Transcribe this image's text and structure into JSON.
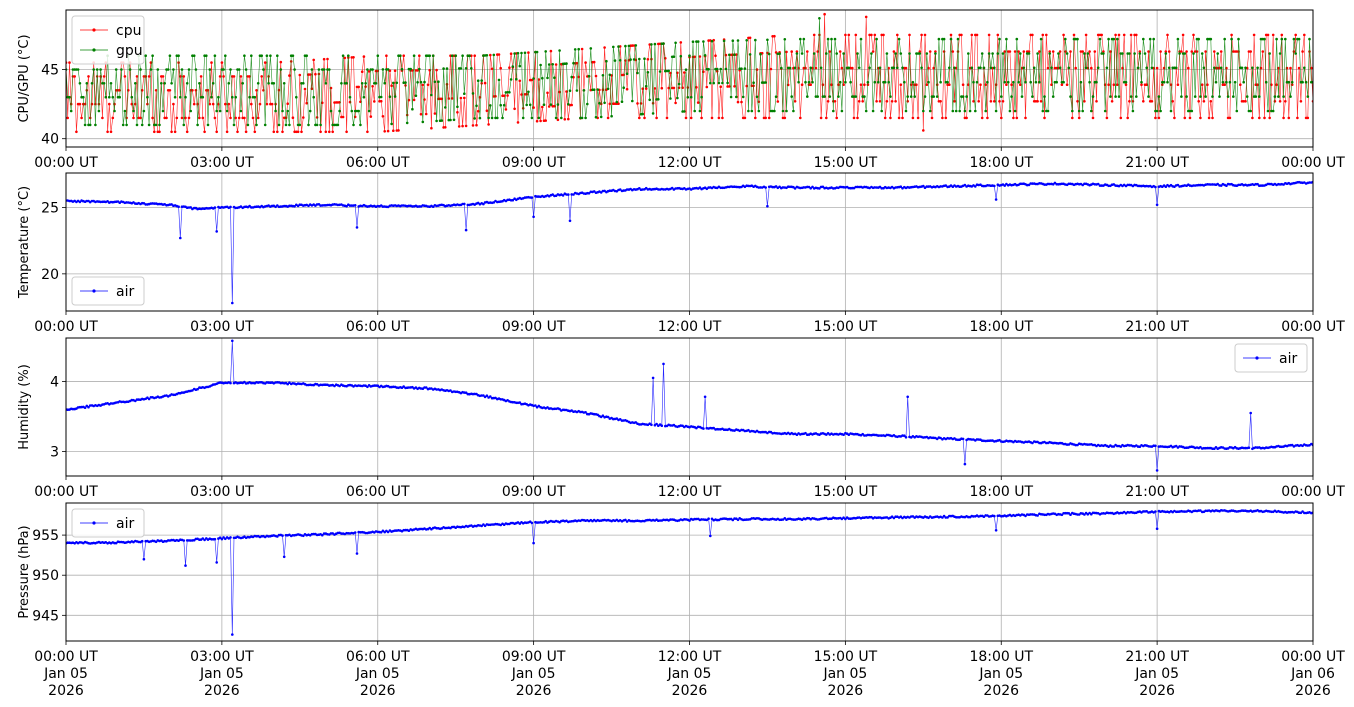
{
  "chart_data": [
    {
      "type": "line",
      "ylabel": "CPU/GPU (°C)",
      "ylim": [
        39.4,
        49.3
      ],
      "yticks": [
        40,
        45
      ],
      "grid": true,
      "legend": {
        "placement": "top-left",
        "entries": [
          "cpu",
          "gpu"
        ]
      },
      "x_ticks": [
        "00:00 UT",
        "03:00 UT",
        "06:00 UT",
        "09:00 UT",
        "12:00 UT",
        "15:00 UT",
        "18:00 UT",
        "21:00 UT",
        "00:00 UT"
      ],
      "x_range_hours": [
        0,
        24
      ],
      "series": [
        {
          "name": "cpu",
          "color": "#ff0000",
          "marker": "dot",
          "x_hours": [
            0,
            2,
            4,
            6,
            8,
            10,
            12,
            14,
            16,
            18,
            20,
            22,
            24
          ],
          "low": [
            40.5,
            40.5,
            40.5,
            40.5,
            41,
            41.5,
            41.5,
            41.5,
            41.5,
            41.5,
            41.5,
            41.5,
            41.5
          ],
          "high": [
            45.5,
            45.5,
            45.5,
            46,
            46,
            46.5,
            47,
            47.5,
            47.5,
            47.5,
            47.5,
            47.5,
            47.5
          ],
          "spikes": [
            {
              "x": 14.6,
              "y": 49.0
            },
            {
              "x": 15.4,
              "y": 48.8
            },
            {
              "x": 16.5,
              "y": 40.6
            }
          ]
        },
        {
          "name": "gpu",
          "color": "#008000",
          "marker": "dot",
          "x_hours": [
            0,
            2,
            4,
            6,
            8,
            10,
            12,
            14,
            16,
            18,
            20,
            22,
            24
          ],
          "low": [
            41,
            41,
            41,
            41,
            41.5,
            41.5,
            42,
            42,
            42,
            42,
            42,
            42,
            42
          ],
          "high": [
            46,
            46,
            46,
            46,
            46,
            46.5,
            47,
            47.2,
            47.2,
            47.2,
            47.2,
            47.2,
            47.2
          ],
          "spikes": [
            {
              "x": 14.5,
              "y": 48.7
            }
          ]
        }
      ]
    },
    {
      "type": "line",
      "ylabel": "Temperature (°C)",
      "ylim": [
        17.2,
        27.6
      ],
      "yticks": [
        20,
        25
      ],
      "grid": true,
      "legend": {
        "placement": "bottom-left",
        "entries": [
          "air"
        ]
      },
      "x_ticks": [
        "00:00 UT",
        "03:00 UT",
        "06:00 UT",
        "09:00 UT",
        "12:00 UT",
        "15:00 UT",
        "18:00 UT",
        "21:00 UT",
        "00:00 UT"
      ],
      "x_range_hours": [
        0,
        24
      ],
      "series": [
        {
          "name": "air",
          "color": "#0000ff",
          "marker": "dot",
          "x_hours": [
            0,
            1,
            2,
            2.5,
            3,
            4,
            5,
            6,
            7,
            8,
            9,
            10,
            11,
            12,
            13,
            14,
            15,
            16,
            17,
            18,
            19,
            20,
            21,
            22,
            23,
            24
          ],
          "y": [
            25.5,
            25.4,
            25.2,
            24.9,
            25.0,
            25.1,
            25.2,
            25.1,
            25.1,
            25.3,
            25.8,
            26.1,
            26.4,
            26.4,
            26.6,
            26.5,
            26.5,
            26.5,
            26.6,
            26.7,
            26.8,
            26.7,
            26.6,
            26.7,
            26.7,
            26.9
          ],
          "spikes": [
            {
              "x": 3.2,
              "y": 17.8
            },
            {
              "x": 2.2,
              "y": 22.7
            },
            {
              "x": 2.9,
              "y": 23.2
            },
            {
              "x": 5.6,
              "y": 23.5
            },
            {
              "x": 7.7,
              "y": 23.3
            },
            {
              "x": 9.0,
              "y": 24.3
            },
            {
              "x": 9.7,
              "y": 24.0
            },
            {
              "x": 13.5,
              "y": 25.1
            },
            {
              "x": 17.9,
              "y": 25.6
            },
            {
              "x": 21.0,
              "y": 25.2
            }
          ]
        }
      ]
    },
    {
      "type": "line",
      "ylabel": "Humidity (%)",
      "ylim": [
        2.65,
        4.62
      ],
      "yticks": [
        3,
        4
      ],
      "grid": true,
      "legend": {
        "placement": "top-right",
        "entries": [
          "air"
        ]
      },
      "x_ticks": [
        "00:00 UT",
        "03:00 UT",
        "06:00 UT",
        "09:00 UT",
        "12:00 UT",
        "15:00 UT",
        "18:00 UT",
        "21:00 UT",
        "00:00 UT"
      ],
      "x_range_hours": [
        0,
        24
      ],
      "series": [
        {
          "name": "air",
          "color": "#0000ff",
          "marker": "dot",
          "x_hours": [
            0,
            1,
            2,
            3,
            4,
            5,
            6,
            7,
            8,
            9,
            10,
            11,
            12,
            13,
            14,
            15,
            16,
            17,
            18,
            19,
            20,
            21,
            22,
            23,
            24
          ],
          "y": [
            3.6,
            3.7,
            3.8,
            3.98,
            3.98,
            3.95,
            3.93,
            3.9,
            3.8,
            3.65,
            3.55,
            3.4,
            3.35,
            3.3,
            3.25,
            3.25,
            3.22,
            3.18,
            3.15,
            3.12,
            3.08,
            3.08,
            3.05,
            3.05,
            3.1
          ],
          "spikes": [
            {
              "x": 3.2,
              "y": 4.58
            },
            {
              "x": 11.5,
              "y": 4.25
            },
            {
              "x": 11.3,
              "y": 4.05
            },
            {
              "x": 12.3,
              "y": 3.78
            },
            {
              "x": 16.2,
              "y": 3.78
            },
            {
              "x": 22.8,
              "y": 3.55
            },
            {
              "x": 21.0,
              "y": 2.73
            },
            {
              "x": 17.3,
              "y": 2.82
            }
          ]
        }
      ]
    },
    {
      "type": "line",
      "ylabel": "Pressure (hPa)",
      "ylim": [
        941.8,
        959.0
      ],
      "yticks": [
        945,
        950,
        955
      ],
      "grid": true,
      "legend": {
        "placement": "top-left",
        "entries": [
          "air"
        ]
      },
      "x_ticks": [
        "00:00 UT",
        "03:00 UT",
        "06:00 UT",
        "09:00 UT",
        "12:00 UT",
        "15:00 UT",
        "18:00 UT",
        "21:00 UT",
        "00:00 UT"
      ],
      "x_tick_dates": [
        "Jan 05",
        "Jan 05",
        "Jan 05",
        "Jan 05",
        "Jan 05",
        "Jan 05",
        "Jan 05",
        "Jan 05",
        "Jan 06"
      ],
      "x_tick_years": [
        "2026",
        "2026",
        "2026",
        "2026",
        "2026",
        "2026",
        "2026",
        "2026",
        "2026"
      ],
      "x_range_hours": [
        0,
        24
      ],
      "series": [
        {
          "name": "air",
          "color": "#0000ff",
          "marker": "dot",
          "x_hours": [
            0,
            1,
            2,
            3,
            4,
            5,
            6,
            7,
            8,
            9,
            10,
            11,
            12,
            13,
            14,
            15,
            16,
            17,
            18,
            19,
            20,
            21,
            22,
            23,
            24
          ],
          "y": [
            954.0,
            954.1,
            954.3,
            954.6,
            954.9,
            955.1,
            955.4,
            955.8,
            956.2,
            956.6,
            956.8,
            956.8,
            956.9,
            957.0,
            957.0,
            957.1,
            957.2,
            957.3,
            957.4,
            957.6,
            957.7,
            957.9,
            958.0,
            958.0,
            957.8
          ],
          "spikes": [
            {
              "x": 3.2,
              "y": 942.6
            },
            {
              "x": 2.3,
              "y": 951.2
            },
            {
              "x": 2.9,
              "y": 951.6
            },
            {
              "x": 1.5,
              "y": 952.0
            },
            {
              "x": 4.2,
              "y": 952.3
            },
            {
              "x": 5.6,
              "y": 952.7
            },
            {
              "x": 9.0,
              "y": 954.0
            },
            {
              "x": 12.4,
              "y": 954.9
            },
            {
              "x": 17.9,
              "y": 955.6
            },
            {
              "x": 21.0,
              "y": 955.8
            }
          ]
        }
      ]
    }
  ]
}
